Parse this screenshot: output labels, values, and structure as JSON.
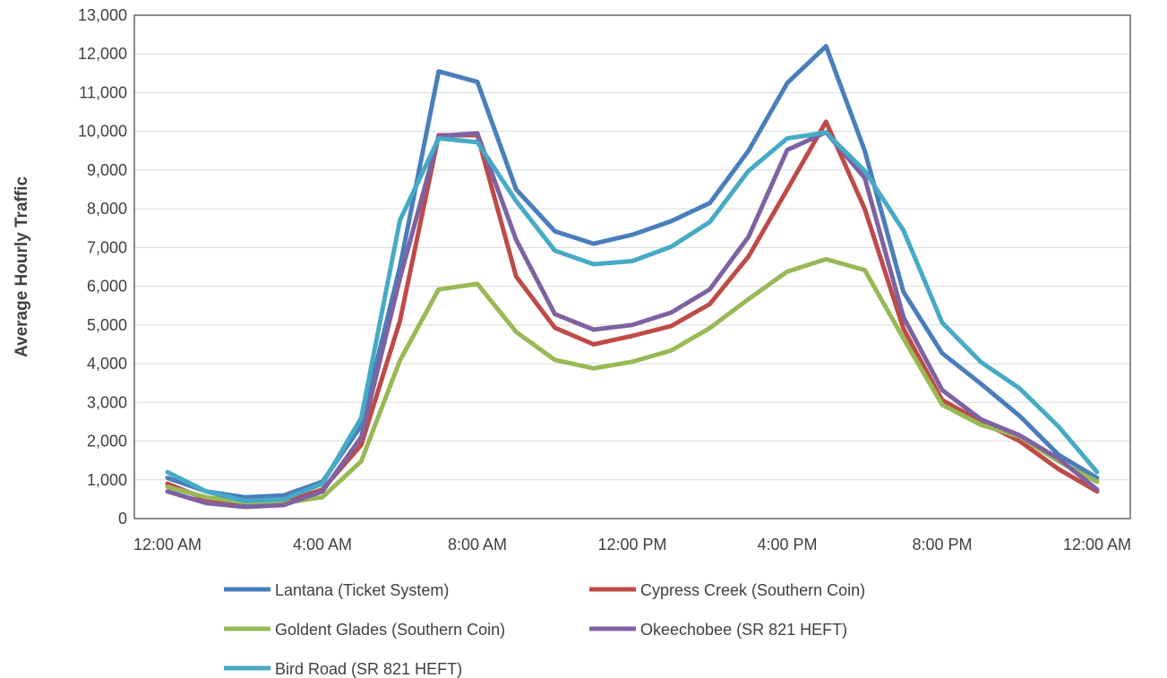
{
  "chart_data": {
    "type": "line",
    "xlabel": "",
    "ylabel": "Average Hourly Traffic",
    "ylim": [
      0,
      13000
    ],
    "y_ticks": [
      "0",
      "1,000",
      "2,000",
      "3,000",
      "4,000",
      "5,000",
      "6,000",
      "7,000",
      "8,000",
      "9,000",
      "10,000",
      "11,000",
      "12,000",
      "13,000"
    ],
    "x_tick_labels": [
      "12:00 AM",
      "4:00 AM",
      "8:00 AM",
      "12:00 PM",
      "4:00 PM",
      "8:00 PM",
      "12:00 AM"
    ],
    "x_hours": [
      0,
      1,
      2,
      3,
      4,
      5,
      6,
      7,
      8,
      9,
      10,
      11,
      12,
      13,
      14,
      15,
      16,
      17,
      18,
      19,
      20,
      21,
      22,
      23,
      24
    ],
    "grid": "horizontal",
    "legend_position": "bottom",
    "series": [
      {
        "name": "Lantana (Ticket System)",
        "color": "#4a7ebb",
        "values": [
          1050,
          700,
          550,
          600,
          950,
          2400,
          6500,
          11550,
          11280,
          8500,
          7420,
          7100,
          7330,
          7680,
          8150,
          9500,
          11250,
          12200,
          9500,
          5850,
          4270,
          3480,
          2650,
          1650,
          1050
        ]
      },
      {
        "name": "Cypress Creek (Southern Coin)",
        "color": "#be4b48",
        "values": [
          900,
          500,
          380,
          420,
          750,
          1900,
          5100,
          9900,
          9900,
          6250,
          4930,
          4500,
          4720,
          4970,
          5540,
          6770,
          8500,
          10250,
          8000,
          4900,
          3060,
          2500,
          2000,
          1280,
          700
        ]
      },
      {
        "name": "Goldent Glades (Southern Coin)",
        "color": "#98b954",
        "values": [
          820,
          550,
          420,
          400,
          550,
          1480,
          4080,
          5920,
          6060,
          4820,
          4100,
          3880,
          4050,
          4340,
          4920,
          5670,
          6380,
          6700,
          6420,
          4650,
          2940,
          2420,
          2120,
          1480,
          950
        ]
      },
      {
        "name": "Okeechobee (SR 821 HEFT)",
        "color": "#7e62a1",
        "values": [
          700,
          400,
          300,
          350,
          700,
          2100,
          6200,
          9880,
          9950,
          7200,
          5280,
          4880,
          5000,
          5320,
          5920,
          7280,
          9520,
          9980,
          8800,
          5200,
          3320,
          2560,
          2150,
          1550,
          750
        ]
      },
      {
        "name": "Bird Road (SR 821 HEFT)",
        "color": "#46aac5",
        "values": [
          1200,
          700,
          450,
          500,
          900,
          2600,
          7700,
          9820,
          9720,
          8200,
          6920,
          6570,
          6650,
          7020,
          7660,
          8980,
          9820,
          9970,
          8980,
          7440,
          5060,
          4040,
          3360,
          2380,
          1200
        ]
      }
    ]
  }
}
